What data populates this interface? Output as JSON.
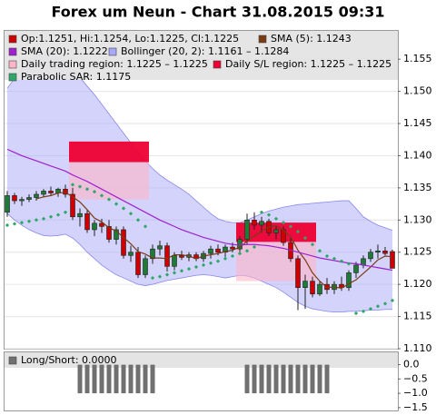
{
  "chart_data": [
    {
      "type": "candlestick",
      "title": "Forex um Neun - Chart 31.08.2015 09:31",
      "ylim": [
        1.11,
        1.1594
      ],
      "yticks": [
        {
          "value": 1.11,
          "label": "1.110"
        },
        1.115,
        {
          "value": 1.12,
          "label": "1.120"
        },
        1.125,
        {
          "value": 1.13,
          "label": "1.130"
        },
        1.135,
        {
          "value": 1.14,
          "label": "1.140"
        },
        1.145,
        {
          "value": 1.15,
          "label": "1.150"
        },
        1.155
      ],
      "grid": true,
      "candles": {
        "name": "Op:1.1251, Hi:1.1254, Lo:1.1225, Cl:1.1225",
        "color": "#cc0000",
        "color_up": "#1e7a34",
        "color_down": "#cc0000",
        "open": [
          1.1312,
          1.1338,
          1.133,
          1.1332,
          1.1335,
          1.134,
          1.1345,
          1.1342,
          1.1348,
          1.134,
          1.1305,
          1.131,
          1.1285,
          1.1295,
          1.129,
          1.127,
          1.1285,
          1.1245,
          1.125,
          1.1215,
          1.124,
          1.1255,
          1.126,
          1.1228,
          1.1245,
          1.1242,
          1.1246,
          1.124,
          1.1248,
          1.1255,
          1.125,
          1.1258,
          1.1255,
          1.127,
          1.13,
          1.1292,
          1.1298,
          1.128,
          1.1285,
          1.1265,
          1.124,
          1.1195,
          1.1205,
          1.1185,
          1.12,
          1.1192,
          1.12,
          1.1195,
          1.1218,
          1.123,
          1.124,
          1.125,
          1.1252,
          1.1251
        ],
        "high": [
          1.1345,
          1.1342,
          1.1336,
          1.134,
          1.1345,
          1.1348,
          1.1352,
          1.135,
          1.1355,
          1.135,
          1.1318,
          1.1315,
          1.13,
          1.1302,
          1.13,
          1.129,
          1.129,
          1.126,
          1.1258,
          1.1245,
          1.1262,
          1.1268,
          1.1265,
          1.125,
          1.1252,
          1.125,
          1.125,
          1.1252,
          1.126,
          1.1262,
          1.1262,
          1.1265,
          1.1275,
          1.131,
          1.1312,
          1.1305,
          1.1302,
          1.129,
          1.129,
          1.1272,
          1.1245,
          1.1215,
          1.1212,
          1.1205,
          1.121,
          1.1205,
          1.1212,
          1.1222,
          1.1235,
          1.1245,
          1.1255,
          1.1262,
          1.1258,
          1.1254
        ],
        "low": [
          1.1305,
          1.1325,
          1.1322,
          1.1328,
          1.133,
          1.1335,
          1.1338,
          1.1336,
          1.1335,
          1.13,
          1.129,
          1.128,
          1.1275,
          1.128,
          1.1265,
          1.1262,
          1.124,
          1.1235,
          1.121,
          1.121,
          1.1232,
          1.1245,
          1.122,
          1.1222,
          1.1238,
          1.1236,
          1.1236,
          1.1235,
          1.124,
          1.1245,
          1.1242,
          1.125,
          1.125,
          1.1262,
          1.1285,
          1.128,
          1.1275,
          1.127,
          1.126,
          1.1235,
          1.116,
          1.1162,
          1.118,
          1.1182,
          1.1185,
          1.1185,
          1.119,
          1.119,
          1.121,
          1.1225,
          1.1235,
          1.124,
          1.1245,
          1.1225
        ],
        "close": [
          1.1338,
          1.133,
          1.1332,
          1.1335,
          1.134,
          1.1345,
          1.1342,
          1.1348,
          1.134,
          1.1305,
          1.131,
          1.1285,
          1.1295,
          1.129,
          1.127,
          1.1285,
          1.1245,
          1.125,
          1.1215,
          1.124,
          1.1255,
          1.126,
          1.1228,
          1.1245,
          1.1242,
          1.1246,
          1.124,
          1.1248,
          1.1255,
          1.125,
          1.1258,
          1.1255,
          1.127,
          1.13,
          1.1292,
          1.1298,
          1.128,
          1.1285,
          1.1265,
          1.124,
          1.1195,
          1.1205,
          1.1185,
          1.12,
          1.1192,
          1.12,
          1.1195,
          1.1218,
          1.123,
          1.124,
          1.125,
          1.1252,
          1.1248,
          1.1225
        ]
      },
      "series": [
        {
          "name": "SMA (5): 1.1243",
          "color": "#7a3b14",
          "values": [
            null,
            null,
            null,
            null,
            1.1333,
            1.1336,
            1.1338,
            1.1342,
            1.1343,
            1.1336,
            1.1328,
            1.1316,
            1.1303,
            1.1297,
            1.1288,
            1.1283,
            1.1273,
            1.1263,
            1.1251,
            1.1247,
            1.1241,
            1.1241,
            1.124,
            1.1246,
            1.1246,
            1.1244,
            1.124,
            1.1244,
            1.1246,
            1.1248,
            1.1251,
            1.1253,
            1.1258,
            1.1267,
            1.1275,
            1.1283,
            1.1289,
            1.1291,
            1.1284,
            1.1274,
            1.1253,
            1.1238,
            1.1218,
            1.1205,
            1.1195,
            1.1196,
            1.1194,
            1.1201,
            1.1207,
            1.1217,
            1.1227,
            1.1238,
            1.1244,
            1.1243
          ]
        },
        {
          "name": "SMA (20): 1.1222",
          "color": "#a020d0",
          "values": [
            1.141,
            1.1405,
            1.14,
            1.1396,
            1.1392,
            1.1388,
            1.1384,
            1.138,
            1.1376,
            1.137,
            1.1365,
            1.136,
            1.1354,
            1.1348,
            1.1342,
            1.1336,
            1.133,
            1.1324,
            1.1318,
            1.1312,
            1.1306,
            1.13,
            1.1295,
            1.129,
            1.1285,
            1.1281,
            1.1277,
            1.1273,
            1.127,
            1.1267,
            1.1264,
            1.1262,
            1.1261,
            1.1262,
            1.1262,
            1.1261,
            1.126,
            1.1258,
            1.1256,
            1.1253,
            1.125,
            1.1247,
            1.1244,
            1.1241,
            1.1239,
            1.1237,
            1.1235,
            1.1233,
            1.1232,
            1.123,
            1.1228,
            1.1226,
            1.1224,
            1.1222
          ]
        }
      ],
      "bollinger": {
        "name": "Bollinger (20, 2): 1.1161 – 1.1284",
        "color": "#a8a8f8",
        "upper": [
          1.1505,
          1.152,
          1.1535,
          1.1548,
          1.1555,
          1.1558,
          1.1557,
          1.1552,
          1.1545,
          1.1535,
          1.1522,
          1.1508,
          1.1495,
          1.148,
          1.1465,
          1.145,
          1.1435,
          1.142,
          1.1405,
          1.1392,
          1.138,
          1.137,
          1.1362,
          1.1355,
          1.1348,
          1.134,
          1.133,
          1.132,
          1.131,
          1.1302,
          1.1298,
          1.1296,
          1.1296,
          1.13,
          1.1305,
          1.131,
          1.1314,
          1.1317,
          1.132,
          1.1322,
          1.1324,
          1.1325,
          1.1326,
          1.1327,
          1.1328,
          1.1329,
          1.133,
          1.133,
          1.1318,
          1.1305,
          1.1298,
          1.1292,
          1.1288,
          1.1284
        ],
        "lower": [
          1.131,
          1.13,
          1.1292,
          1.1285,
          1.128,
          1.1276,
          1.1275,
          1.1276,
          1.1278,
          1.1272,
          1.1262,
          1.125,
          1.124,
          1.123,
          1.1222,
          1.1215,
          1.121,
          1.1205,
          1.12,
          1.1198,
          1.12,
          1.1203,
          1.1206,
          1.1208,
          1.121,
          1.1212,
          1.1214,
          1.1215,
          1.1214,
          1.1212,
          1.121,
          1.1212,
          1.1214,
          1.1213,
          1.121,
          1.1205,
          1.12,
          1.1195,
          1.1188,
          1.118,
          1.1172,
          1.1166,
          1.1162,
          1.116,
          1.1158,
          1.1157,
          1.1157,
          1.1158,
          1.1158,
          1.1159,
          1.116,
          1.116,
          1.1161,
          1.1161
        ]
      },
      "regions": [
        {
          "name": "Daily trading region: 1.1225 – 1.1225",
          "color": "#ffb6c8",
          "spans": [
            {
              "start": 9,
              "end": 19,
              "low": 1.1332,
              "high": 1.139
            },
            {
              "start": 32,
              "end": 42,
              "low": 1.1205,
              "high": 1.1266
            }
          ]
        },
        {
          "name": "Daily S/L region: 1.1225 – 1.1225",
          "color": "#ee0033",
          "spans": [
            {
              "start": 9,
              "end": 19,
              "low": 1.139,
              "high": 1.1422
            },
            {
              "start": 32,
              "end": 42,
              "low": 1.1266,
              "high": 1.1296
            }
          ]
        }
      ],
      "sar": {
        "name": "Parabolic SAR: 1.1175",
        "color": "#2ea86a",
        "values": [
          1.1292,
          1.1294,
          1.1296,
          1.1298,
          1.13,
          1.1302,
          1.1305,
          1.1308,
          1.1312,
          1.1355,
          1.1352,
          1.1348,
          1.1344,
          1.1338,
          1.1332,
          1.1325,
          1.1318,
          1.131,
          1.13,
          1.129,
          1.121,
          1.1212,
          1.1215,
          1.1218,
          1.1221,
          1.1224,
          1.1227,
          1.123,
          1.1233,
          1.1236,
          1.124,
          1.1244,
          1.1248,
          1.1252,
          1.1258,
          1.1312,
          1.1308,
          1.1302,
          1.1296,
          1.129,
          1.1282,
          1.1272,
          1.1262,
          1.1252,
          1.1244,
          1.124,
          1.1236,
          1.1232,
          1.1155,
          1.1158,
          1.1162,
          1.1166,
          1.117,
          1.1175
        ]
      }
    },
    {
      "type": "bar",
      "title": "Long/Short: 0.0000",
      "color": "#707070",
      "ylim": [
        -1.6,
        0.4
      ],
      "yticks": [
        {
          "value": 0,
          "label": "0.0"
        },
        {
          "value": -0.5,
          "label": "−0.5"
        },
        {
          "value": -1,
          "label": "−1.0"
        },
        {
          "value": -1.5,
          "label": "−1.5"
        }
      ],
      "values": [
        0,
        0,
        0,
        0,
        0,
        0,
        0,
        0,
        0,
        0,
        -1,
        -1,
        -1,
        -1,
        -1,
        -1,
        -1,
        -1,
        -1,
        -1,
        -1,
        0,
        0,
        0,
        0,
        0,
        0,
        0,
        0,
        0,
        0,
        0,
        0,
        -1,
        -1,
        -1,
        -1,
        -1,
        -1,
        -1,
        -1,
        -1,
        -1,
        -1,
        -1,
        0,
        0,
        0,
        0,
        0,
        0,
        0,
        0,
        0
      ]
    }
  ]
}
